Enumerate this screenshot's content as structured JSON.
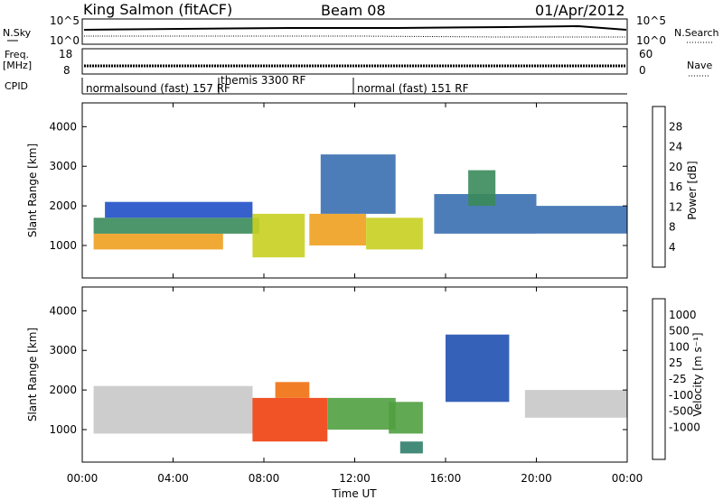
{
  "header": {
    "radar": "King Salmon (fitACF)",
    "beam": "Beam 08",
    "date": "01/Apr/2012"
  },
  "strips": {
    "nsky_label": "N.Sky",
    "nsearch_label": "N.Search",
    "nsky_ticks": [
      "10^5",
      "10^0"
    ],
    "nsearch_ticks": [
      "10^5",
      "10^0"
    ],
    "freq_label_1": "Freq.",
    "freq_label_2": "[MHz]",
    "freq_ticks": [
      "18",
      "8"
    ],
    "nave_label": "Nave",
    "nave_ticks": [
      "60",
      "0"
    ],
    "cpid_label": "CPID",
    "cpid_modes": [
      {
        "name": "normalsound (fast) 157 RF",
        "start_hour": 0,
        "end_hour": 6
      },
      {
        "name": "themis 3300 RF",
        "start_hour": 6,
        "end_hour": 12
      },
      {
        "name": "normal (fast) 151 RF",
        "start_hour": 12,
        "end_hour": 24
      }
    ]
  },
  "chart_data": [
    {
      "type": "heatmap",
      "panel": "power",
      "title": "",
      "xlabel": "Time UT",
      "ylabel": "Slant Range [km]",
      "xlim": [
        0,
        24
      ],
      "ylim": [
        180,
        4600
      ],
      "x_ticks": [
        "00:00",
        "04:00",
        "08:00",
        "12:00",
        "16:00",
        "20:00",
        "00:00"
      ],
      "y_ticks": [
        1000,
        2000,
        3000,
        4000
      ],
      "colorbar": {
        "label": "Power [dB]",
        "ticks": [
          4,
          8,
          12,
          16,
          20,
          24,
          28
        ],
        "colors": [
          "#1030e0",
          "#2050c8",
          "#3a6fb0",
          "#3a8a5a",
          "#5aa040",
          "#c8d020",
          "#f0a020",
          "#f06010",
          "#e01010"
        ]
      },
      "regions": [
        {
          "t0": 0.5,
          "t1": 6.2,
          "r0": 900,
          "r1": 1300,
          "value": 22
        },
        {
          "t0": 0.5,
          "t1": 7.8,
          "r0": 1300,
          "r1": 1700,
          "value": 12
        },
        {
          "t0": 1.0,
          "t1": 7.5,
          "r0": 1700,
          "r1": 2100,
          "value": 6
        },
        {
          "t0": 7.5,
          "t1": 9.8,
          "r0": 700,
          "r1": 1800,
          "value": 18
        },
        {
          "t0": 10.0,
          "t1": 12.5,
          "r0": 1000,
          "r1": 1800,
          "value": 24
        },
        {
          "t0": 10.5,
          "t1": 13.8,
          "r0": 1800,
          "r1": 3300,
          "value": 8
        },
        {
          "t0": 12.5,
          "t1": 15.0,
          "r0": 900,
          "r1": 1700,
          "value": 20
        },
        {
          "t0": 15.5,
          "t1": 20.0,
          "r0": 1300,
          "r1": 2300,
          "value": 8
        },
        {
          "t0": 17.0,
          "t1": 18.2,
          "r0": 2000,
          "r1": 2900,
          "value": 14
        },
        {
          "t0": 20.0,
          "t1": 24.0,
          "r0": 1300,
          "r1": 2000,
          "value": 10
        }
      ]
    },
    {
      "type": "heatmap",
      "panel": "velocity",
      "title": "",
      "xlabel": "Time UT",
      "ylabel": "Slant Range [km]",
      "xlim": [
        0,
        24
      ],
      "ylim": [
        180,
        4600
      ],
      "x_ticks": [
        "00:00",
        "04:00",
        "08:00",
        "12:00",
        "16:00",
        "20:00",
        "00:00"
      ],
      "y_ticks": [
        1000,
        2000,
        3000,
        4000
      ],
      "colorbar": {
        "label": "Velocity [m s⁻¹]",
        "ticks": [
          "1000",
          "500",
          "100",
          "25",
          "-25",
          "-100",
          "-500",
          "-1000"
        ],
        "colors": [
          "#1030d0",
          "#2050b0",
          "#30806a",
          "#50a040",
          "#90c060",
          "#c8c8c8",
          "#f0a020",
          "#f07010",
          "#f04010",
          "#e01010"
        ]
      },
      "regions": [
        {
          "t0": 0.5,
          "t1": 7.5,
          "r0": 900,
          "r1": 2100,
          "value": 0
        },
        {
          "t0": 7.5,
          "t1": 10.8,
          "r0": 700,
          "r1": 1800,
          "value": -300
        },
        {
          "t0": 8.5,
          "t1": 10.0,
          "r0": 1800,
          "r1": 2200,
          "value": -150
        },
        {
          "t0": 10.8,
          "t1": 13.8,
          "r0": 1000,
          "r1": 1800,
          "value": 200
        },
        {
          "t0": 13.5,
          "t1": 15.0,
          "r0": 900,
          "r1": 1700,
          "value": 150
        },
        {
          "t0": 14.0,
          "t1": 15.0,
          "r0": 400,
          "r1": 700,
          "value": 300
        },
        {
          "t0": 16.0,
          "t1": 18.8,
          "r0": 1700,
          "r1": 3400,
          "value": 700
        },
        {
          "t0": 19.5,
          "t1": 24.0,
          "r0": 1300,
          "r1": 2000,
          "value": 0
        }
      ]
    }
  ]
}
